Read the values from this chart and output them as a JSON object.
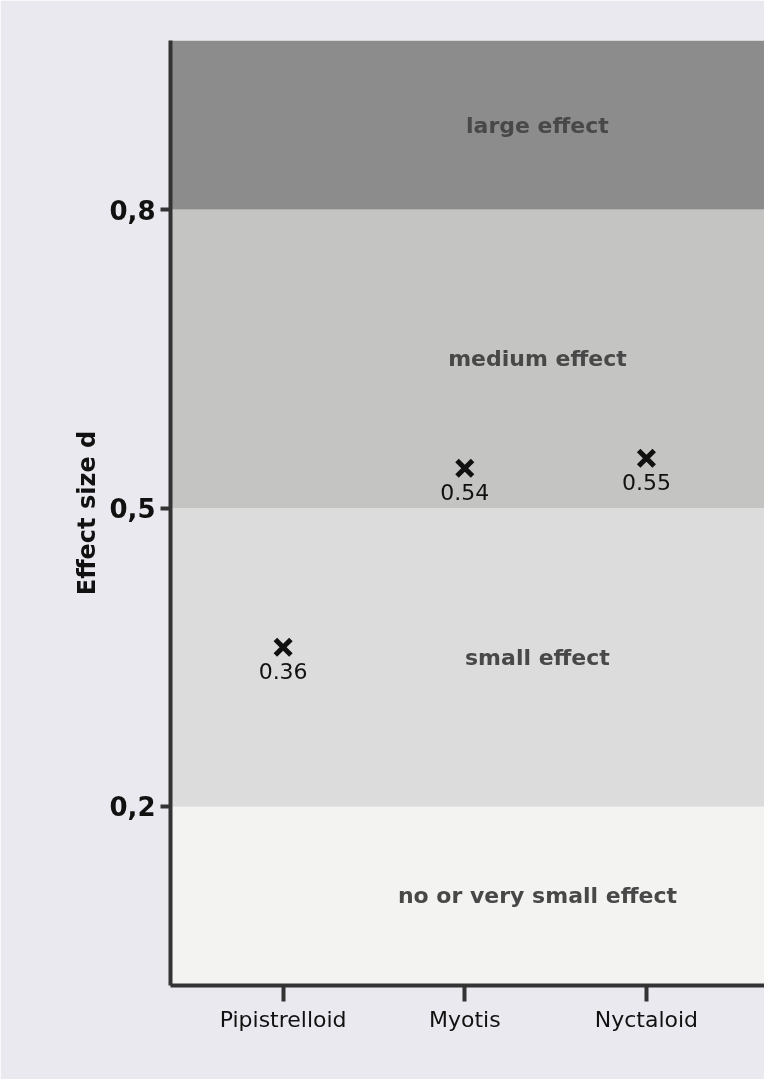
{
  "chart_data": {
    "type": "scatter",
    "ylabel": "Effect size d",
    "categories": [
      "Pipistrelloid",
      "Myotis",
      "Nyctaloid"
    ],
    "values": [
      0.36,
      0.54,
      0.55
    ],
    "color": "#111111",
    "marker": "cross",
    "data_labels": true,
    "ylim": [
      0.02,
      0.97
    ],
    "yticks": [
      {
        "value": 0.2,
        "label": "0,2"
      },
      {
        "value": 0.5,
        "label": "0,5"
      },
      {
        "value": 0.8,
        "label": "0,8"
      }
    ],
    "bands": [
      {
        "axis": "y",
        "from": 0.02,
        "to": 0.2,
        "label": "no or very small effect",
        "color": "#f3f3f1"
      },
      {
        "axis": "y",
        "from": 0.2,
        "to": 0.5,
        "label": "small effect",
        "color": "#dcdcdc"
      },
      {
        "axis": "y",
        "from": 0.5,
        "to": 0.8,
        "label": "medium effect",
        "color": "#c4c5c2"
      },
      {
        "axis": "y",
        "from": 0.8,
        "to": 0.97,
        "label": "large effect",
        "color": "#8c8c8c"
      }
    ]
  }
}
